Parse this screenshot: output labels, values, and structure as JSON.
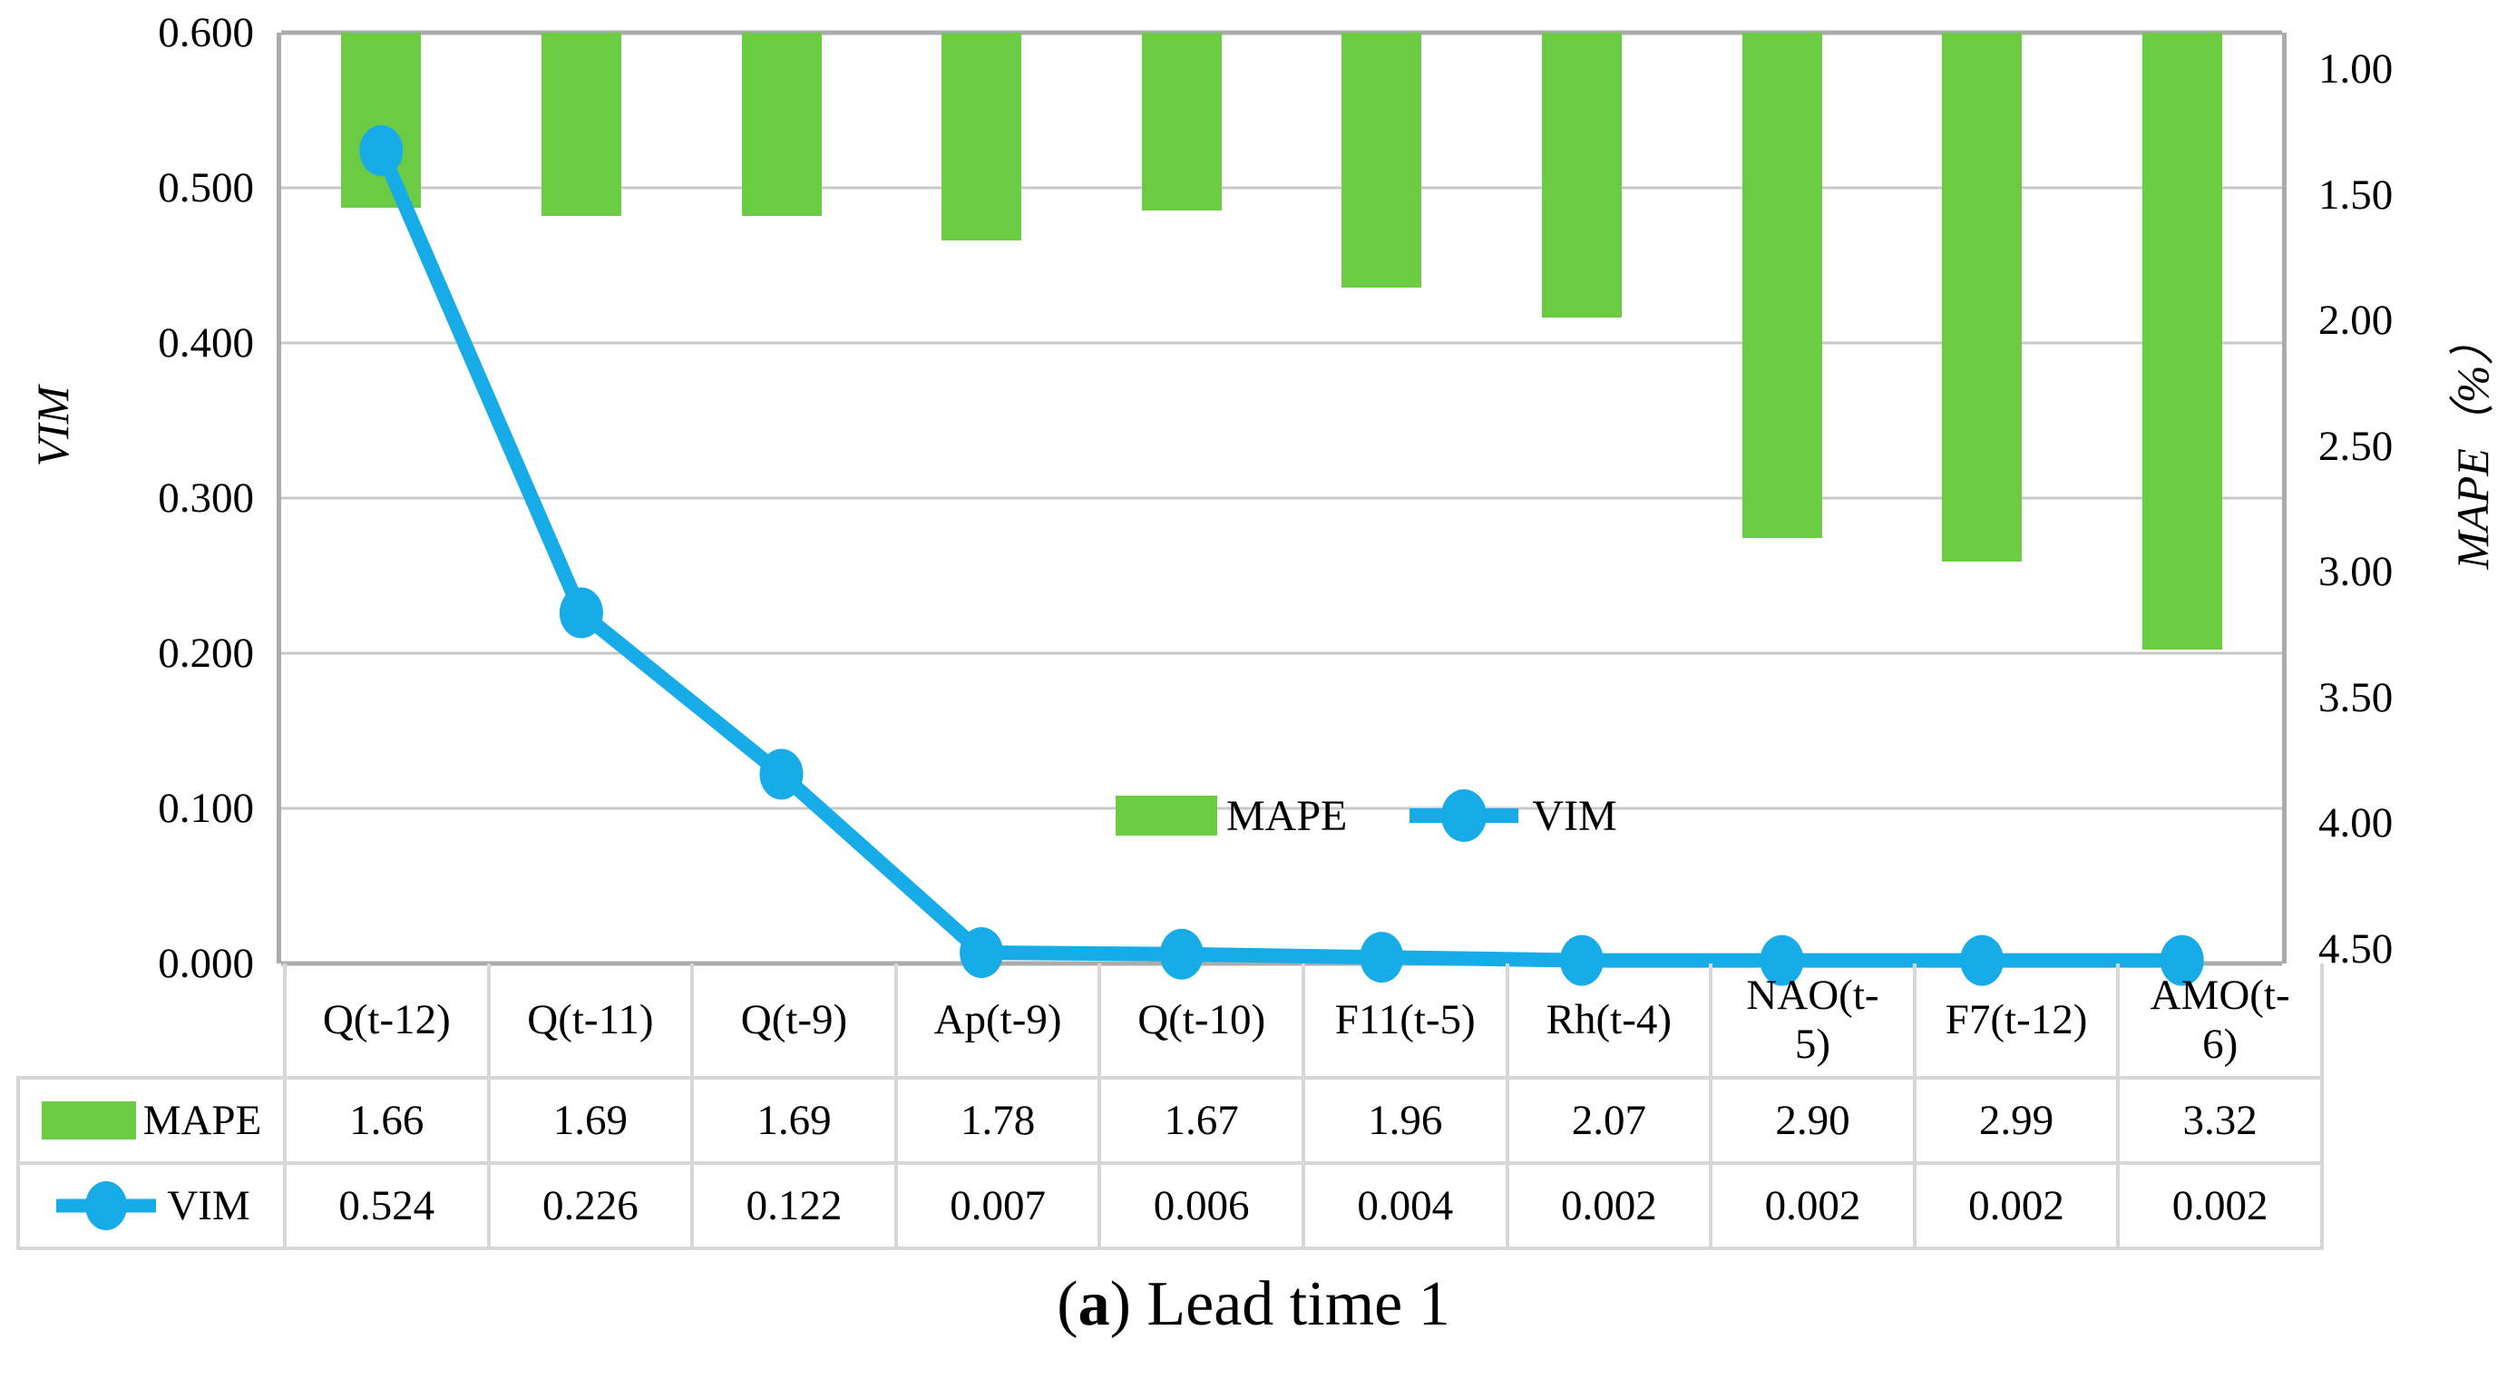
{
  "figure": {
    "caption": {
      "open": "(",
      "bold_label": "a",
      "rest": ") Lead time 1"
    }
  },
  "chart_data": {
    "type": "combo-bar-line",
    "title": "",
    "categories": [
      "Q(t-12)",
      "Q(t-11)",
      "Q(t-9)",
      "Ap(t-9)",
      "Q(t-10)",
      "F11(t-5)",
      "Rh(t-4)",
      "NAO(t-5)",
      "F7(t-12)",
      "AMO(t-6)"
    ],
    "category_display_lines": [
      [
        "Q(t-12)"
      ],
      [
        "Q(t-11)"
      ],
      [
        "Q(t-9)"
      ],
      [
        "Ap(t-9)"
      ],
      [
        "Q(t-10)"
      ],
      [
        "F11(t-5)"
      ],
      [
        "Rh(t-4)"
      ],
      [
        "NAO(t-",
        "5)"
      ],
      [
        "F7(t-12)"
      ],
      [
        "AMO(t-",
        "6)"
      ]
    ],
    "series": [
      {
        "name": "MAPE",
        "type": "bar",
        "axis": "right",
        "color": "#6BCC43",
        "decimals": 2,
        "values": [
          1.66,
          1.69,
          1.69,
          1.78,
          1.67,
          1.96,
          2.07,
          2.9,
          2.99,
          3.32
        ]
      },
      {
        "name": "VIM",
        "type": "line",
        "axis": "left",
        "color": "#17ACE8",
        "decimals": 3,
        "values": [
          0.524,
          0.226,
          0.122,
          0.007,
          0.006,
          0.004,
          0.002,
          0.002,
          0.002,
          0.002
        ]
      }
    ],
    "left_axis": {
      "title": "VIM",
      "min": 0,
      "max": 0.6,
      "tick_labels": [
        "0.600",
        "0.500",
        "0.400",
        "0.300",
        "0.200",
        "0.100",
        "0.000"
      ]
    },
    "right_axis": {
      "title": "MAPE（%）",
      "min": 1.0,
      "max": 4.5,
      "inverted": true,
      "tick_labels": [
        "1.00",
        "1.50",
        "2.00",
        "2.50",
        "3.00",
        "3.50",
        "4.00",
        "4.50"
      ]
    },
    "legend": {
      "position": "inside-bottom-center",
      "entries": [
        "MAPE",
        "VIM"
      ]
    },
    "grid": {
      "horizontal": true,
      "vertical": false
    },
    "colors": {
      "bar_green": "#6BCC43",
      "line_blue": "#17ACE8",
      "gridline_gray": "#C9C9C9",
      "axis_gray": "#ABABAB",
      "table_border_gray": "#D7D7D7"
    }
  }
}
